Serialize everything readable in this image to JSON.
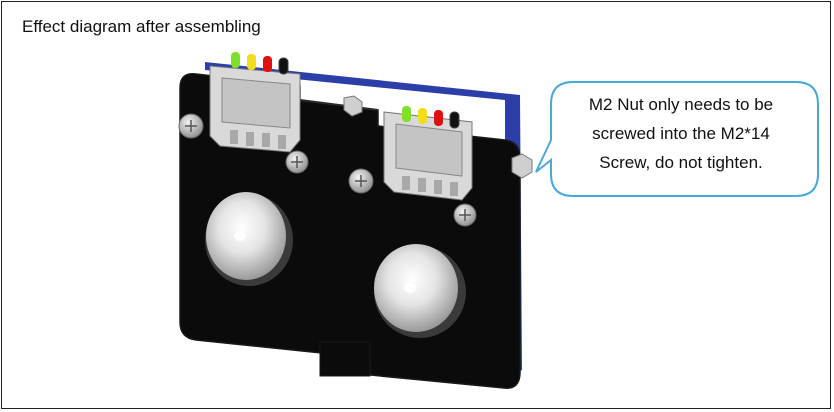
{
  "caption": "Effect diagram after assembling",
  "callout": {
    "lines": [
      "M2 Nut only needs to be",
      "screwed into the M2*14",
      "Screw, do not tighten."
    ]
  },
  "colors": {
    "board": "#0b0b0b",
    "pcb_edge": "#2c3ea8",
    "bubble_border": "#49a9d8",
    "led_green": "#7fe02c",
    "led_yellow": "#f2dc1c",
    "led_red": "#e01010",
    "led_black": "#111111"
  },
  "icons": [
    "screw-icon",
    "nut-icon",
    "connector-icon",
    "led-icon",
    "sensor-dome-icon"
  ]
}
